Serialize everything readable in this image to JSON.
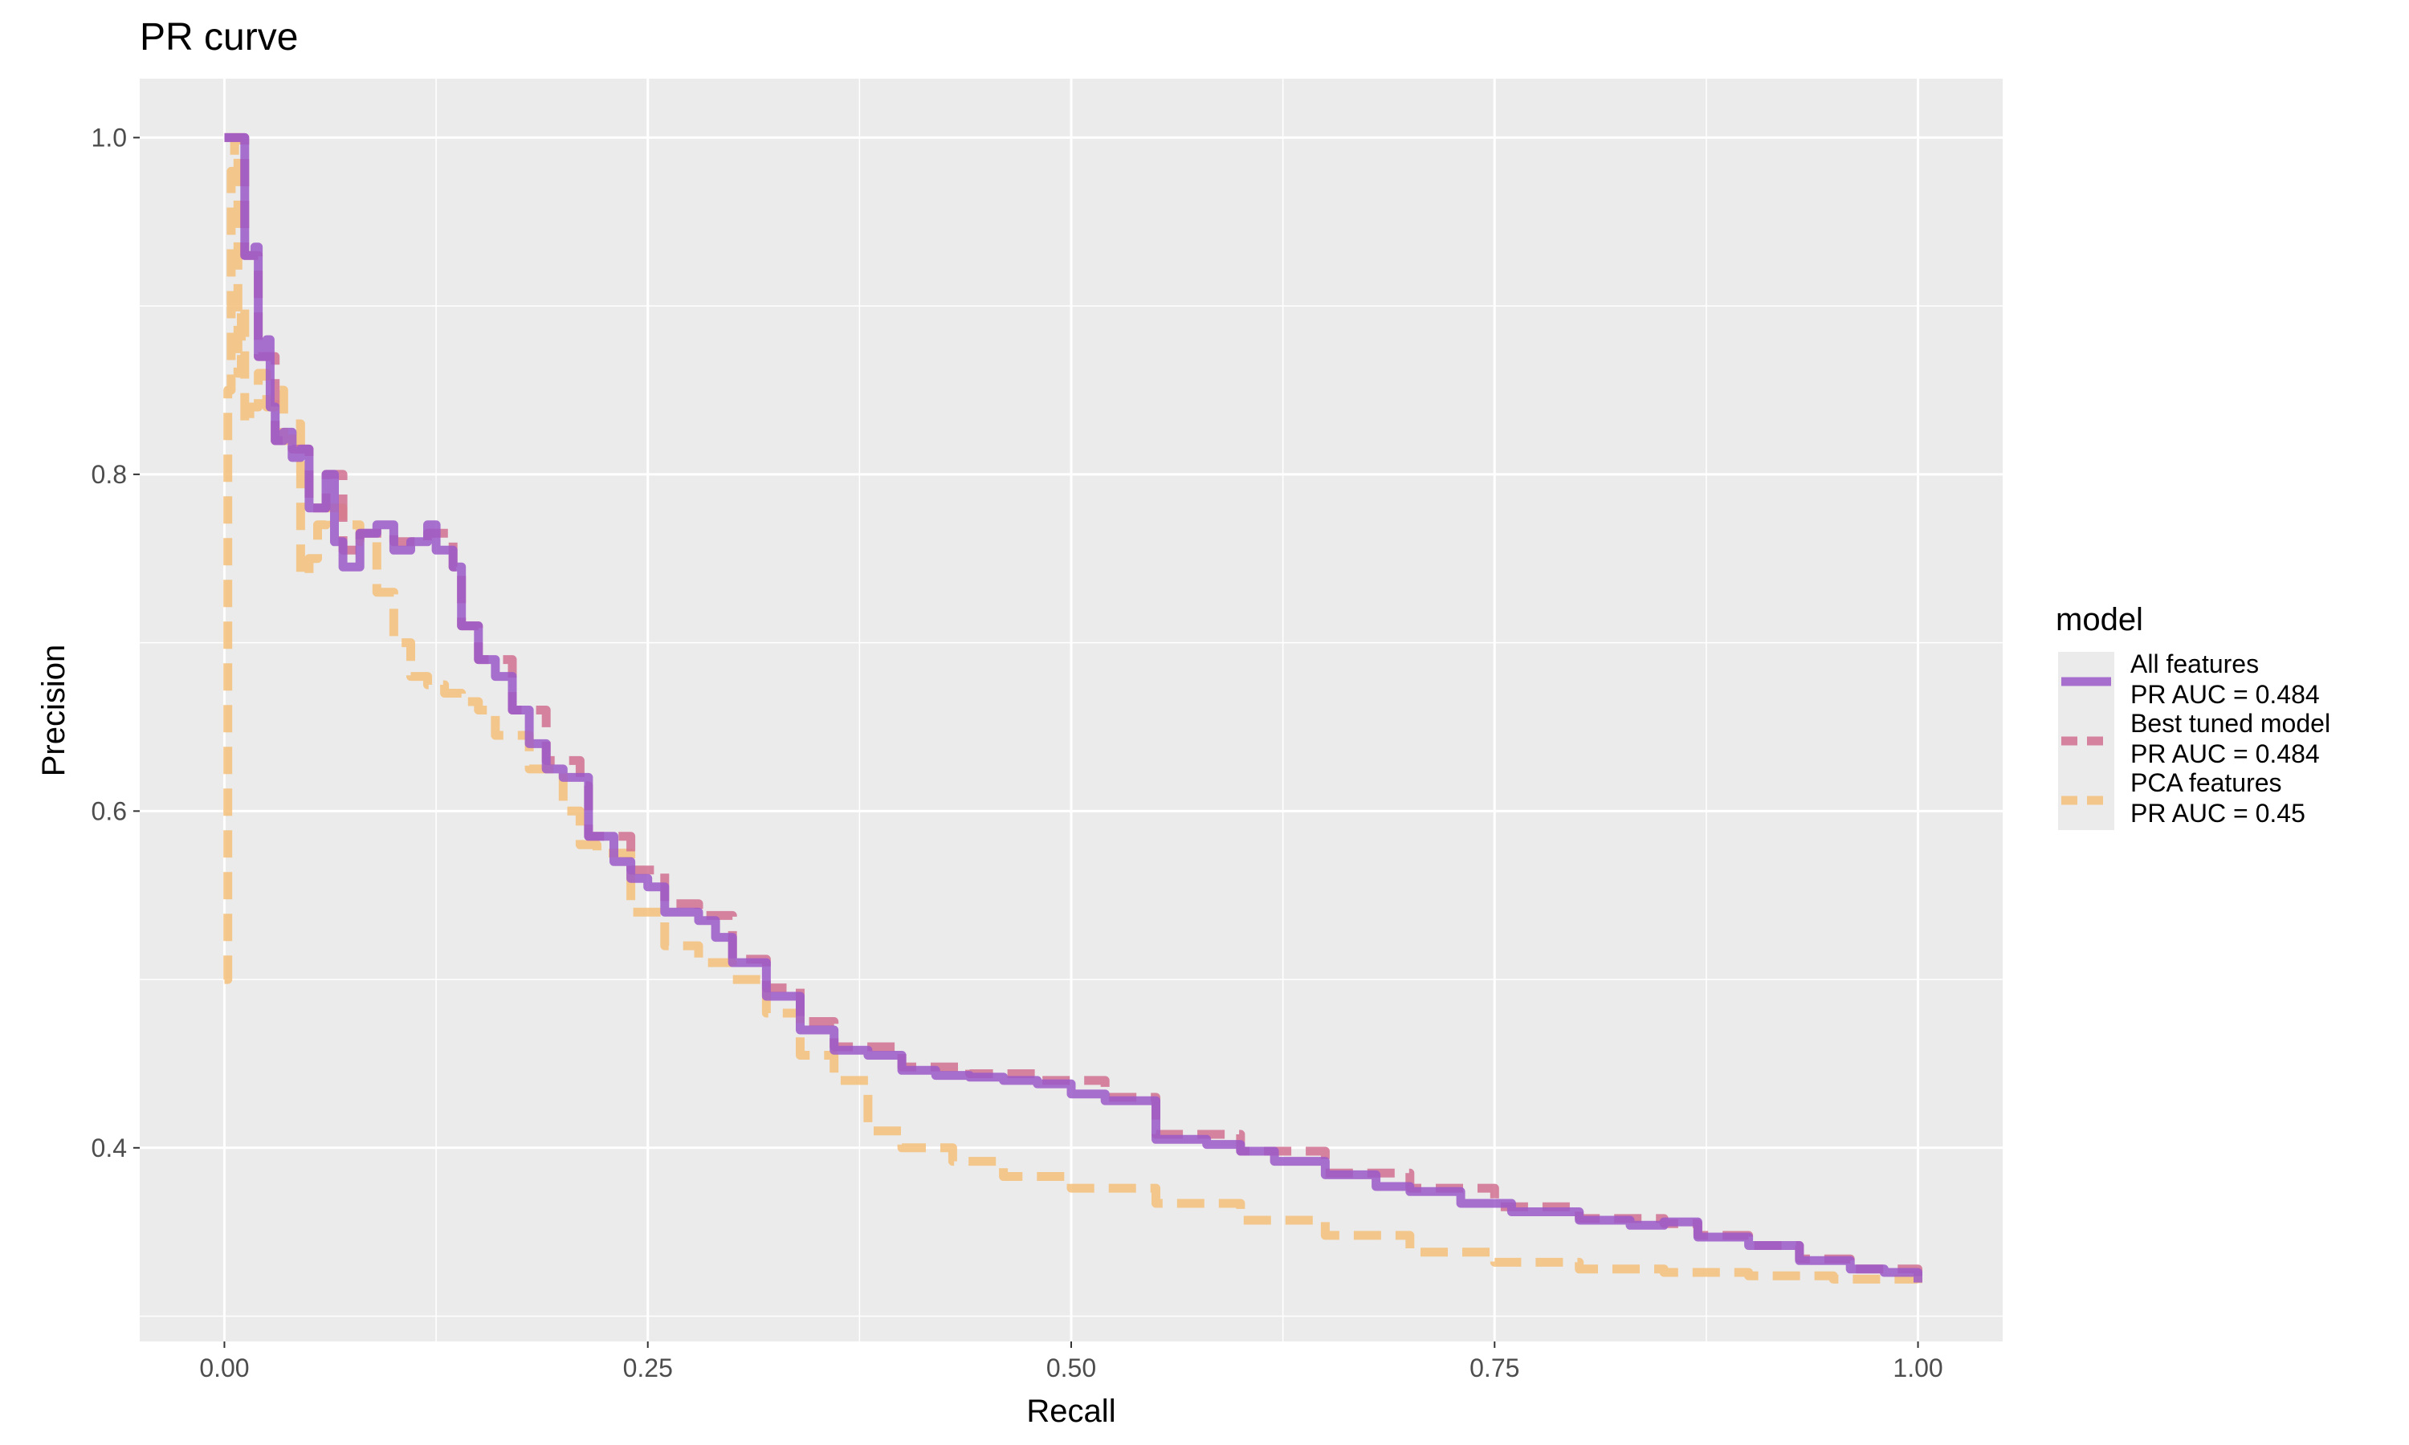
{
  "chart_data": {
    "type": "line",
    "title": "PR curve",
    "xlabel": "Recall",
    "ylabel": "Precision",
    "xlim": [
      -0.05,
      1.05
    ],
    "ylim": [
      0.285,
      1.035
    ],
    "x_ticks": [
      0,
      0.25,
      0.5,
      0.75,
      1
    ],
    "x_tick_labels": [
      "0.00",
      "0.25",
      "0.50",
      "0.75",
      "1.00"
    ],
    "y_ticks": [
      0.4,
      0.6,
      0.8,
      1.0
    ],
    "y_tick_labels": [
      "0.4",
      "0.6",
      "0.8",
      "1.0"
    ],
    "grid": true,
    "background": "#EBEBEB",
    "legend": {
      "title": "model",
      "position": "right"
    },
    "series": [
      {
        "name": "All features\nPR AUC =  0.484",
        "label_lines": [
          "All features",
          "PR AUC =  0.484"
        ],
        "color": "#9B59C8",
        "dash": "solid",
        "points": [
          [
            0.0,
            1.0
          ],
          [
            0.01,
            1.0
          ],
          [
            0.012,
            0.93
          ],
          [
            0.018,
            0.935
          ],
          [
            0.02,
            0.87
          ],
          [
            0.025,
            0.88
          ],
          [
            0.027,
            0.84
          ],
          [
            0.03,
            0.82
          ],
          [
            0.035,
            0.825
          ],
          [
            0.04,
            0.81
          ],
          [
            0.045,
            0.815
          ],
          [
            0.05,
            0.78
          ],
          [
            0.06,
            0.8
          ],
          [
            0.065,
            0.76
          ],
          [
            0.07,
            0.745
          ],
          [
            0.08,
            0.765
          ],
          [
            0.09,
            0.77
          ],
          [
            0.1,
            0.755
          ],
          [
            0.11,
            0.76
          ],
          [
            0.12,
            0.77
          ],
          [
            0.125,
            0.755
          ],
          [
            0.135,
            0.745
          ],
          [
            0.14,
            0.71
          ],
          [
            0.15,
            0.69
          ],
          [
            0.16,
            0.68
          ],
          [
            0.17,
            0.66
          ],
          [
            0.18,
            0.64
          ],
          [
            0.19,
            0.625
          ],
          [
            0.2,
            0.62
          ],
          [
            0.21,
            0.62
          ],
          [
            0.215,
            0.585
          ],
          [
            0.23,
            0.57
          ],
          [
            0.24,
            0.56
          ],
          [
            0.25,
            0.555
          ],
          [
            0.26,
            0.54
          ],
          [
            0.28,
            0.535
          ],
          [
            0.29,
            0.525
          ],
          [
            0.3,
            0.51
          ],
          [
            0.32,
            0.49
          ],
          [
            0.34,
            0.47
          ],
          [
            0.36,
            0.458
          ],
          [
            0.38,
            0.455
          ],
          [
            0.4,
            0.446
          ],
          [
            0.42,
            0.443
          ],
          [
            0.44,
            0.442
          ],
          [
            0.46,
            0.44
          ],
          [
            0.48,
            0.438
          ],
          [
            0.5,
            0.432
          ],
          [
            0.52,
            0.428
          ],
          [
            0.55,
            0.405
          ],
          [
            0.58,
            0.402
          ],
          [
            0.6,
            0.398
          ],
          [
            0.62,
            0.392
          ],
          [
            0.65,
            0.384
          ],
          [
            0.68,
            0.377
          ],
          [
            0.7,
            0.374
          ],
          [
            0.73,
            0.367
          ],
          [
            0.76,
            0.362
          ],
          [
            0.8,
            0.357
          ],
          [
            0.83,
            0.354
          ],
          [
            0.85,
            0.356
          ],
          [
            0.87,
            0.347
          ],
          [
            0.9,
            0.342
          ],
          [
            0.93,
            0.333
          ],
          [
            0.96,
            0.328
          ],
          [
            0.98,
            0.326
          ],
          [
            1.0,
            0.32
          ]
        ]
      },
      {
        "name": "Best tuned model\nPR AUC =  0.484",
        "label_lines": [
          "Best tuned model",
          "PR AUC =  0.484"
        ],
        "color": "#D07090",
        "dash": "dashed",
        "points": [
          [
            0.0,
            1.0
          ],
          [
            0.01,
            1.0
          ],
          [
            0.012,
            0.93
          ],
          [
            0.02,
            0.87
          ],
          [
            0.03,
            0.82
          ],
          [
            0.04,
            0.815
          ],
          [
            0.05,
            0.78
          ],
          [
            0.06,
            0.8
          ],
          [
            0.07,
            0.755
          ],
          [
            0.08,
            0.765
          ],
          [
            0.1,
            0.76
          ],
          [
            0.12,
            0.765
          ],
          [
            0.135,
            0.745
          ],
          [
            0.14,
            0.71
          ],
          [
            0.15,
            0.69
          ],
          [
            0.17,
            0.66
          ],
          [
            0.19,
            0.63
          ],
          [
            0.21,
            0.615
          ],
          [
            0.215,
            0.585
          ],
          [
            0.24,
            0.565
          ],
          [
            0.26,
            0.545
          ],
          [
            0.28,
            0.538
          ],
          [
            0.3,
            0.512
          ],
          [
            0.32,
            0.495
          ],
          [
            0.34,
            0.475
          ],
          [
            0.36,
            0.46
          ],
          [
            0.4,
            0.448
          ],
          [
            0.44,
            0.444
          ],
          [
            0.48,
            0.44
          ],
          [
            0.52,
            0.43
          ],
          [
            0.55,
            0.408
          ],
          [
            0.6,
            0.398
          ],
          [
            0.65,
            0.385
          ],
          [
            0.7,
            0.376
          ],
          [
            0.75,
            0.365
          ],
          [
            0.8,
            0.358
          ],
          [
            0.85,
            0.355
          ],
          [
            0.87,
            0.348
          ],
          [
            0.9,
            0.342
          ],
          [
            0.93,
            0.334
          ],
          [
            0.96,
            0.328
          ],
          [
            1.0,
            0.322
          ]
        ]
      },
      {
        "name": "PCA features\nPR AUC =  0.45",
        "label_lines": [
          "PCA features",
          "PR AUC =  0.45"
        ],
        "color": "#F5C07A",
        "dash": "dashed",
        "points": [
          [
            0.0,
            0.5
          ],
          [
            0.002,
            0.85
          ],
          [
            0.004,
            0.98
          ],
          [
            0.006,
            1.0
          ],
          [
            0.008,
            0.86
          ],
          [
            0.01,
            0.9
          ],
          [
            0.012,
            0.83
          ],
          [
            0.015,
            0.84
          ],
          [
            0.02,
            0.86
          ],
          [
            0.025,
            0.84
          ],
          [
            0.03,
            0.85
          ],
          [
            0.035,
            0.82
          ],
          [
            0.04,
            0.83
          ],
          [
            0.045,
            0.74
          ],
          [
            0.05,
            0.75
          ],
          [
            0.055,
            0.77
          ],
          [
            0.06,
            0.78
          ],
          [
            0.07,
            0.77
          ],
          [
            0.08,
            0.76
          ],
          [
            0.09,
            0.73
          ],
          [
            0.1,
            0.7
          ],
          [
            0.11,
            0.68
          ],
          [
            0.12,
            0.675
          ],
          [
            0.13,
            0.67
          ],
          [
            0.14,
            0.665
          ],
          [
            0.15,
            0.66
          ],
          [
            0.16,
            0.645
          ],
          [
            0.18,
            0.625
          ],
          [
            0.2,
            0.6
          ],
          [
            0.21,
            0.58
          ],
          [
            0.22,
            0.575
          ],
          [
            0.24,
            0.54
          ],
          [
            0.26,
            0.52
          ],
          [
            0.28,
            0.51
          ],
          [
            0.3,
            0.5
          ],
          [
            0.32,
            0.48
          ],
          [
            0.34,
            0.455
          ],
          [
            0.36,
            0.44
          ],
          [
            0.38,
            0.41
          ],
          [
            0.4,
            0.4
          ],
          [
            0.43,
            0.392
          ],
          [
            0.46,
            0.383
          ],
          [
            0.5,
            0.376
          ],
          [
            0.55,
            0.367
          ],
          [
            0.6,
            0.357
          ],
          [
            0.65,
            0.348
          ],
          [
            0.7,
            0.338
          ],
          [
            0.75,
            0.332
          ],
          [
            0.8,
            0.328
          ],
          [
            0.85,
            0.326
          ],
          [
            0.9,
            0.324
          ],
          [
            0.95,
            0.322
          ],
          [
            1.0,
            0.318
          ]
        ]
      }
    ]
  }
}
